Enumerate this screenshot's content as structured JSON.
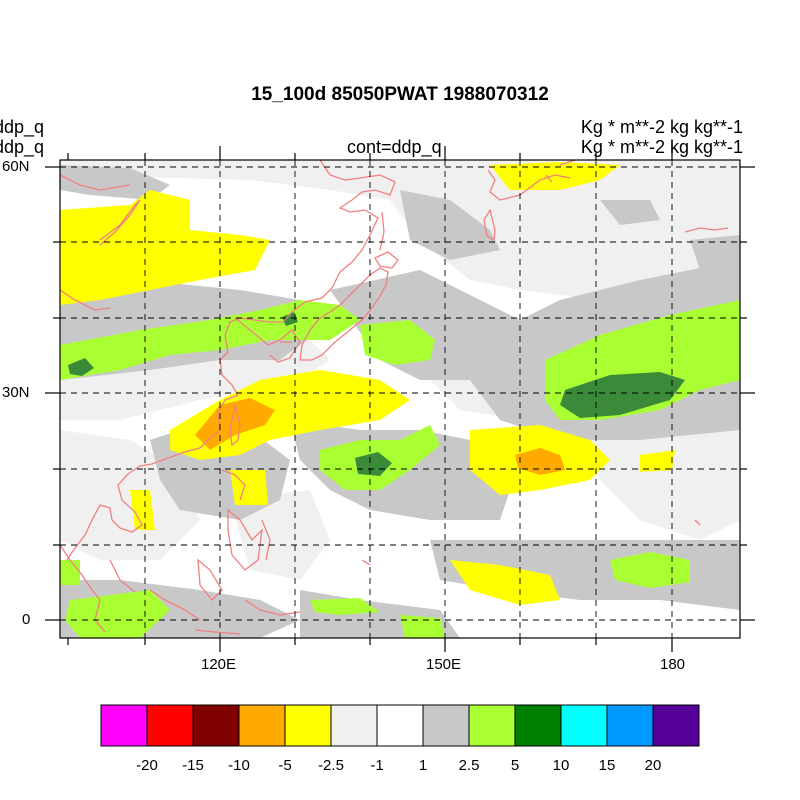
{
  "title": "15_100d 85050PWAT  1988070312",
  "left_labels": [
    "ddp_q",
    "ddp_q"
  ],
  "center_label": "cont=ddp_q",
  "right_labels": [
    "Kg  * m**-2 kg kg**-1",
    "Kg  * m**-2 kg kg**-1"
  ],
  "map": {
    "lon_range": [
      98,
      187
    ],
    "lat_range": [
      -2,
      60
    ],
    "lat_ticks": [
      {
        "value": 60,
        "label": "60N"
      },
      {
        "value": 30,
        "label": "30N"
      },
      {
        "value": 0,
        "label": "0"
      }
    ],
    "lon_ticks": [
      {
        "value": 120,
        "label": "120E"
      },
      {
        "value": 150,
        "label": "150E"
      },
      {
        "value": 180,
        "label": "180"
      }
    ],
    "grid": true,
    "coastline_color": "#f08080"
  },
  "colorbar": {
    "colors": [
      "#ff00ff",
      "#ff0000",
      "#800000",
      "#ffaa00",
      "#ffff00",
      "#f0f0f0",
      "#ffffff",
      "#c8c8c8",
      "#aaff33",
      "#008000",
      "#00ffff",
      "#0099ff",
      "#550099"
    ],
    "labels": [
      "-20",
      "-15",
      "-10",
      "-5",
      "-2.5",
      "-1",
      "1",
      "2.5",
      "5",
      "10",
      "15",
      "20"
    ]
  }
}
